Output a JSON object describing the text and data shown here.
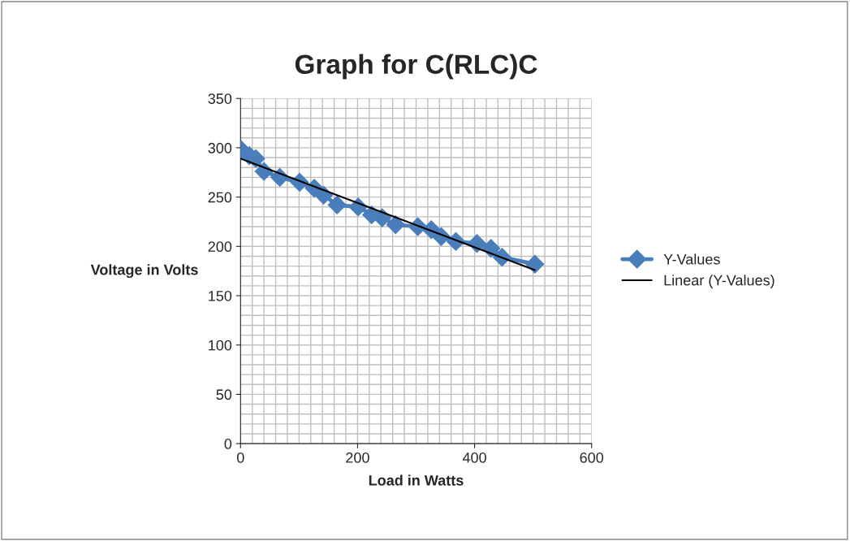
{
  "chart_data": {
    "type": "line",
    "title": "Graph for C(RLC)C",
    "xlabel": "Load in Watts",
    "ylabel": "Voltage in Volts",
    "xlim": [
      0,
      600
    ],
    "xticks": [
      0,
      200,
      400,
      600
    ],
    "ylim": [
      0,
      350
    ],
    "yticks": [
      0,
      50,
      100,
      150,
      200,
      250,
      300,
      350
    ],
    "grid": true,
    "legend": "right",
    "series": [
      {
        "name": "Y-Values",
        "color": "#4a7ebb",
        "marker": "diamond",
        "line_style": "solid",
        "x": [
          1,
          15,
          26,
          40,
          67,
          101,
          126,
          142,
          165,
          201,
          224,
          242,
          265,
          303,
          326,
          343,
          368,
          404,
          428,
          447,
          503
        ],
        "values": [
          298,
          292,
          289,
          276,
          270,
          265,
          259,
          252,
          242,
          240,
          232,
          229,
          222,
          220,
          217,
          210,
          205,
          203,
          198,
          189,
          182
        ]
      },
      {
        "name": "Linear (Y-Values)",
        "color": "#000000",
        "type": "line",
        "marker": "none",
        "line_style": "solid",
        "x": [
          0,
          503
        ],
        "values": [
          289,
          176
        ]
      }
    ]
  }
}
